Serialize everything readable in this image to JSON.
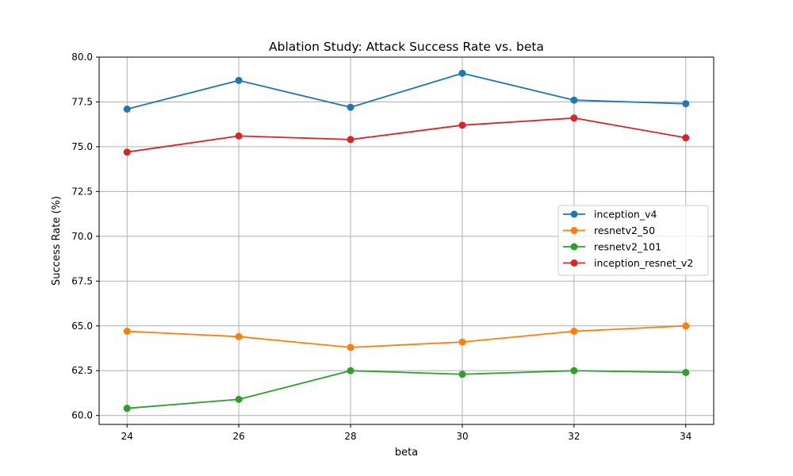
{
  "chart_data": {
    "type": "line",
    "title": "Ablation Study: Attack Success Rate vs. beta",
    "xlabel": "beta",
    "ylabel": "Success Rate (%)",
    "x": [
      24,
      26,
      28,
      30,
      32,
      34
    ],
    "xlim": [
      23.5,
      34.5
    ],
    "ylim": [
      59.5,
      80.0
    ],
    "xticks": [
      24,
      26,
      28,
      30,
      32,
      34
    ],
    "yticks": [
      "60.0",
      "62.5",
      "65.0",
      "67.5",
      "70.0",
      "72.5",
      "75.0",
      "77.5",
      "80.0"
    ],
    "grid": true,
    "legend_position": "center-right",
    "series": [
      {
        "name": "inception_v4",
        "color": "#1f77b4",
        "values": [
          77.1,
          78.7,
          77.2,
          79.1,
          77.6,
          77.4
        ]
      },
      {
        "name": "resnetv2_50",
        "color": "#ff7f0e",
        "values": [
          64.7,
          64.4,
          63.8,
          64.1,
          64.7,
          65.0
        ]
      },
      {
        "name": "resnetv2_101",
        "color": "#2ca02c",
        "values": [
          60.4,
          60.9,
          62.5,
          62.3,
          62.5,
          62.4
        ]
      },
      {
        "name": "inception_resnet_v2",
        "color": "#d62728",
        "values": [
          74.7,
          75.6,
          75.4,
          76.2,
          76.6,
          75.5
        ]
      }
    ]
  }
}
